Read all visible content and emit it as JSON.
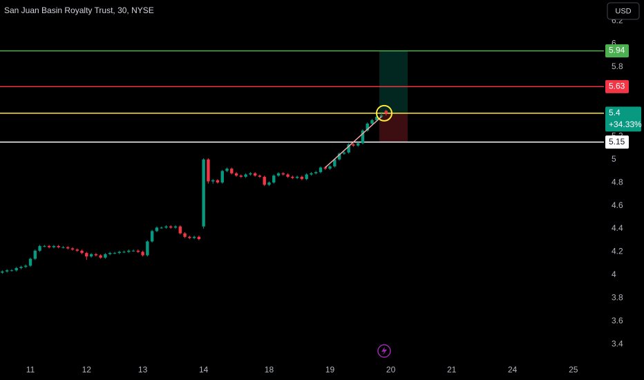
{
  "chart_data": {
    "type": "candlestick",
    "title": "San Juan Basin Royalty Trust, 30, NYSE",
    "currency": "USD",
    "change_label": "+34.33%",
    "up_color": "#089981",
    "down_color": "#f23645",
    "ylim": [
      3.27,
      6.38
    ],
    "yticks": [
      3.4,
      3.6,
      3.8,
      4.0,
      4.2,
      4.4,
      4.6,
      4.8,
      5.0,
      5.2,
      5.4,
      5.6,
      5.8,
      6.0,
      6.2
    ],
    "grid": false,
    "categories": [
      null,
      null,
      null,
      null,
      null,
      null,
      "11",
      null,
      null,
      null,
      null,
      null,
      null,
      null,
      null,
      null,
      null,
      null,
      "12",
      null,
      null,
      null,
      null,
      null,
      null,
      null,
      null,
      null,
      null,
      null,
      "13",
      null,
      null,
      null,
      null,
      null,
      null,
      null,
      null,
      null,
      null,
      null,
      null,
      "14",
      null,
      null,
      null,
      null,
      null,
      null,
      null,
      null,
      null,
      null,
      null,
      null,
      null,
      "18",
      null,
      null,
      null,
      null,
      null,
      null,
      null,
      null,
      null,
      null,
      null,
      null,
      "19",
      null,
      null,
      null,
      null,
      null,
      null,
      null,
      null,
      null,
      null,
      null,
      null,
      "20",
      null,
      null,
      null,
      null,
      null,
      null,
      null,
      null,
      null,
      null,
      null,
      null,
      "21",
      null,
      null,
      null,
      null,
      null,
      null,
      null,
      null,
      null,
      null,
      null,
      null,
      "24",
      null,
      null,
      null,
      null,
      null,
      null,
      null,
      null,
      null,
      null,
      null,
      null,
      "25",
      null,
      null,
      null,
      null,
      null
    ],
    "ohlc": [
      [
        4.02,
        4.04,
        4.01,
        4.03
      ],
      [
        4.03,
        4.05,
        4.02,
        4.04
      ],
      [
        4.04,
        4.05,
        4.03,
        4.04
      ],
      [
        4.04,
        4.07,
        4.03,
        4.06
      ],
      [
        4.06,
        4.08,
        4.05,
        4.07
      ],
      [
        4.07,
        4.09,
        4.06,
        4.08
      ],
      [
        4.08,
        4.15,
        4.07,
        4.14
      ],
      [
        4.14,
        4.22,
        4.13,
        4.21
      ],
      [
        4.21,
        4.26,
        4.2,
        4.25
      ],
      [
        4.25,
        4.26,
        4.24,
        4.25
      ],
      [
        4.25,
        4.26,
        4.23,
        4.24
      ],
      [
        4.24,
        4.26,
        4.23,
        4.25
      ],
      [
        4.25,
        4.26,
        4.23,
        4.24
      ],
      [
        4.24,
        4.25,
        4.23,
        4.24
      ],
      [
        4.24,
        4.25,
        4.22,
        4.23
      ],
      [
        4.23,
        4.24,
        4.21,
        4.22
      ],
      [
        4.22,
        4.23,
        4.2,
        4.21
      ],
      [
        4.21,
        4.22,
        4.18,
        4.19
      ],
      [
        4.19,
        4.2,
        4.13,
        4.16
      ],
      [
        4.16,
        4.19,
        4.15,
        4.18
      ],
      [
        4.18,
        4.19,
        4.16,
        4.17
      ],
      [
        4.17,
        4.18,
        4.14,
        4.15
      ],
      [
        4.15,
        4.19,
        4.14,
        4.18
      ],
      [
        4.18,
        4.2,
        4.17,
        4.19
      ],
      [
        4.19,
        4.2,
        4.18,
        4.19
      ],
      [
        4.19,
        4.21,
        4.18,
        4.2
      ],
      [
        4.2,
        4.21,
        4.19,
        4.2
      ],
      [
        4.2,
        4.22,
        4.19,
        4.21
      ],
      [
        4.21,
        4.22,
        4.2,
        4.21
      ],
      [
        4.21,
        4.22,
        4.19,
        4.2
      ],
      [
        4.2,
        4.21,
        4.16,
        4.17
      ],
      [
        4.17,
        4.3,
        4.16,
        4.29
      ],
      [
        4.29,
        4.39,
        4.28,
        4.38
      ],
      [
        4.38,
        4.42,
        4.37,
        4.41
      ],
      [
        4.41,
        4.42,
        4.4,
        4.41
      ],
      [
        4.41,
        4.43,
        4.4,
        4.42
      ],
      [
        4.42,
        4.43,
        4.4,
        4.41
      ],
      [
        4.41,
        4.43,
        4.4,
        4.42
      ],
      [
        4.42,
        4.43,
        4.35,
        4.36
      ],
      [
        4.36,
        4.37,
        4.32,
        4.33
      ],
      [
        4.33,
        4.34,
        4.31,
        4.32
      ],
      [
        4.32,
        4.34,
        4.31,
        4.33
      ],
      [
        4.33,
        4.34,
        4.3,
        4.31
      ],
      [
        4.42,
        5.01,
        4.4,
        5.0
      ],
      [
        5.0,
        5.01,
        4.79,
        4.81
      ],
      [
        4.81,
        4.83,
        4.79,
        4.82
      ],
      [
        4.82,
        4.83,
        4.79,
        4.8
      ],
      [
        4.8,
        4.91,
        4.79,
        4.9
      ],
      [
        4.9,
        4.93,
        4.89,
        4.92
      ],
      [
        4.92,
        4.93,
        4.87,
        4.88
      ],
      [
        4.88,
        4.89,
        4.85,
        4.86
      ],
      [
        4.86,
        4.87,
        4.84,
        4.85
      ],
      [
        4.85,
        4.88,
        4.84,
        4.87
      ],
      [
        4.87,
        4.89,
        4.86,
        4.88
      ],
      [
        4.88,
        4.89,
        4.85,
        4.86
      ],
      [
        4.86,
        4.87,
        4.84,
        4.85
      ],
      [
        4.85,
        4.86,
        4.77,
        4.78
      ],
      [
        4.78,
        4.81,
        4.77,
        4.8
      ],
      [
        4.8,
        4.87,
        4.79,
        4.86
      ],
      [
        4.86,
        4.89,
        4.85,
        4.88
      ],
      [
        4.88,
        4.89,
        4.86,
        4.87
      ],
      [
        4.87,
        4.88,
        4.84,
        4.85
      ],
      [
        4.85,
        4.86,
        4.83,
        4.84
      ],
      [
        4.84,
        4.86,
        4.83,
        4.85
      ],
      [
        4.85,
        4.86,
        4.82,
        4.83
      ],
      [
        4.83,
        4.88,
        4.82,
        4.87
      ],
      [
        4.87,
        4.89,
        4.86,
        4.88
      ],
      [
        4.88,
        4.9,
        4.87,
        4.89
      ],
      [
        4.89,
        4.94,
        4.88,
        4.93
      ],
      [
        4.93,
        4.94,
        4.91,
        4.92
      ],
      [
        4.92,
        4.95,
        4.91,
        4.94
      ],
      [
        4.94,
        5.01,
        4.93,
        5.0
      ],
      [
        5.0,
        5.06,
        4.99,
        5.05
      ],
      [
        5.05,
        5.07,
        5.04,
        5.06
      ],
      [
        5.06,
        5.14,
        5.05,
        5.13
      ],
      [
        5.13,
        5.14,
        5.11,
        5.12
      ],
      [
        5.12,
        5.15,
        5.11,
        5.14
      ],
      [
        5.14,
        5.26,
        5.13,
        5.25
      ],
      [
        5.25,
        5.32,
        5.24,
        5.31
      ],
      [
        5.31,
        5.35,
        5.3,
        5.34
      ],
      [
        5.34,
        5.38,
        5.33,
        5.37
      ],
      [
        5.37,
        5.41,
        5.36,
        5.38
      ],
      [
        5.42,
        5.43,
        5.38,
        5.4
      ],
      null,
      null,
      null,
      null,
      null,
      null,
      null,
      null,
      null,
      null,
      null,
      null,
      null,
      null,
      null,
      null,
      null,
      null,
      null,
      null,
      null,
      null,
      null,
      null,
      null,
      null,
      null,
      null,
      null,
      null,
      null,
      null,
      null,
      null,
      null,
      null,
      null,
      null,
      null,
      null,
      null,
      null,
      null,
      null,
      null
    ],
    "levels": [
      {
        "value": 5.94,
        "color": "#4caf50",
        "label_color": "#4caf50",
        "text_color": "#ffffff"
      },
      {
        "value": 5.63,
        "color": "#f23645",
        "label_color": "#f23645",
        "text_color": "#ffffff"
      },
      {
        "value": 5.4,
        "color": "#ffeb3b",
        "label_color": "#089981",
        "text_color": "#ffffff"
      },
      {
        "value": 5.15,
        "color": "#ffffff",
        "label_color": "#ffffff",
        "text_color": "#131722"
      }
    ],
    "trend_line": {
      "color": "#f7a9a8",
      "values": [
        4.93,
        5.37
      ]
    }
  }
}
